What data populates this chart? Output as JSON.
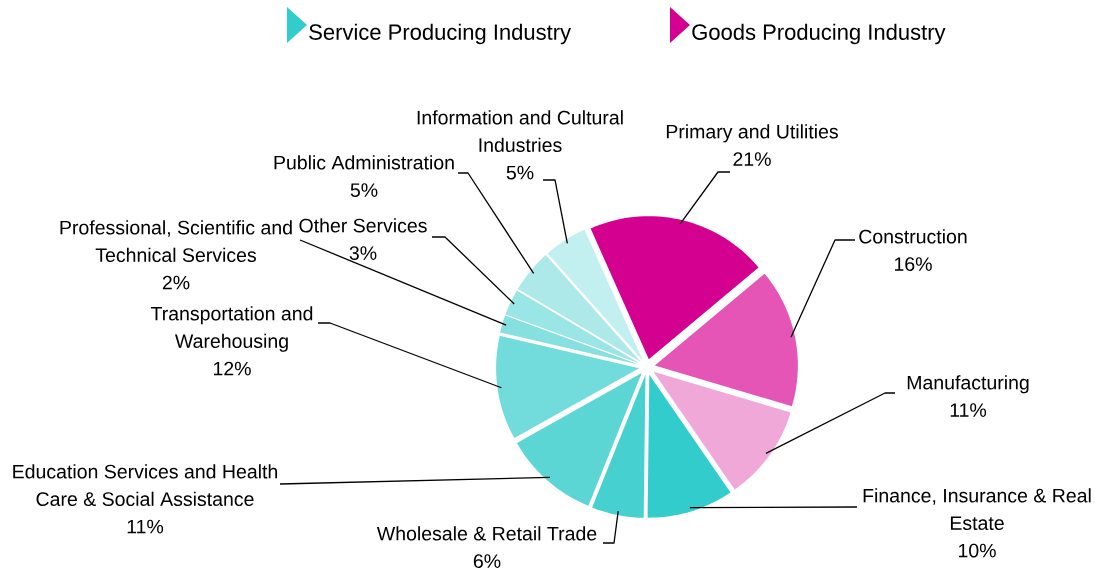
{
  "chart_data": {
    "type": "pie",
    "categories": [
      "Primary and Utilities",
      "Construction",
      "Manufacturing",
      "Finance, Insurance & Real Estate",
      "Wholesale & Retail Trade",
      "Education Services and Health Care & Social Assistance",
      "Transportation and Warehousing",
      "Professional, Scientific and Technical Services",
      "Other Services",
      "Public Administration",
      "Information and Cultural Industries"
    ],
    "values": [
      21,
      16,
      11,
      10,
      6,
      11,
      12,
      2,
      3,
      5,
      5
    ],
    "value_labels": [
      "21%",
      "16%",
      "11%",
      "10%",
      "6%",
      "11%",
      "12%",
      "2%",
      "3%",
      "5%",
      "5%"
    ],
    "colors": [
      "#d4008f",
      "#e455b5",
      "#f0a8d8",
      "#33cccc",
      "#47d0d0",
      "#5cd5d5",
      "#72dcdc",
      "#86e0e0",
      "#9ae5e5",
      "#aee9e9",
      "#c2efef"
    ],
    "annotations": [
      "Service Producing Industry",
      "Goods Producing Industry"
    ]
  }
}
